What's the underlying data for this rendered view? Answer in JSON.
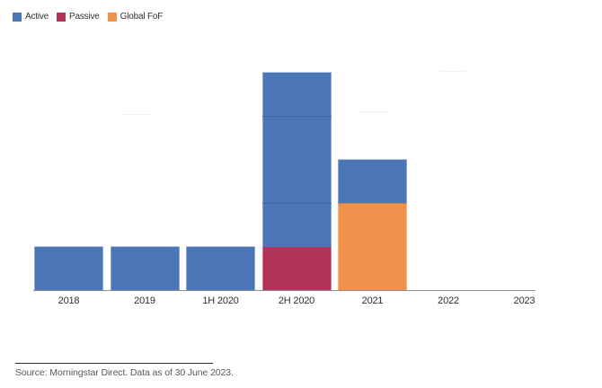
{
  "legend": {
    "items": [
      {
        "label": "Active",
        "color": "#4C77B7"
      },
      {
        "label": "Passive",
        "color": "#B23358"
      },
      {
        "label": "Global FoF",
        "color": "#F0914C"
      }
    ]
  },
  "x_axis": {
    "labels": [
      "2018",
      "2019",
      "1H 2020",
      "2H 2020",
      "2021",
      "2022",
      "2023"
    ]
  },
  "source": {
    "text": "Source: Morningstar Direct. Data as of 30 June 2023."
  },
  "chart_data": {
    "type": "bar",
    "stacked": true,
    "title": "",
    "xlabel": "",
    "ylabel": "",
    "categories": [
      "2018",
      "2019",
      "1H 2020",
      "2H 2020",
      "2021",
      "2022",
      "2023"
    ],
    "series": [
      {
        "name": "Active",
        "color": "#4C77B7",
        "values": [
          1,
          1,
          1,
          4,
          1,
          0,
          0
        ]
      },
      {
        "name": "Passive",
        "color": "#B23358",
        "values": [
          0,
          0,
          0,
          1,
          0,
          0,
          0
        ]
      },
      {
        "name": "Global FoF",
        "color": "#F0914C",
        "values": [
          0,
          0,
          0,
          0,
          2,
          0,
          0
        ]
      }
    ],
    "totals_by_category": [
      1,
      1,
      1,
      5,
      3,
      0,
      0
    ],
    "stack_order_bottom_to_top": [
      "Passive",
      "Global FoF",
      "Active"
    ],
    "units": "relative units (no y-axis tick labels visible)",
    "y_axis_labels_visible": false,
    "ylim": [
      0,
      5.5
    ],
    "grid": false,
    "legend_position": "top-left"
  }
}
